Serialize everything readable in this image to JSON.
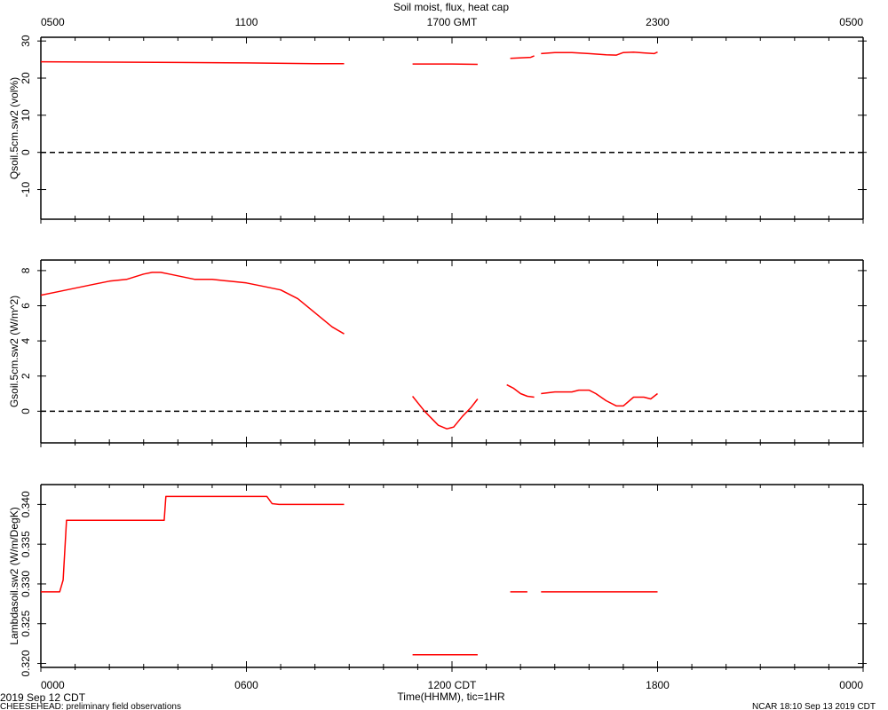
{
  "chart_data": {
    "type": "line",
    "title": "Soil moist, flux, heat cap",
    "line_color": "#ff0000",
    "top_axis_ticks": [
      "0500",
      "1100",
      "1700 GMT",
      "2300",
      "0500"
    ],
    "bottom_axis_ticks": [
      "0000",
      "0600",
      "1200 CDT",
      "1800",
      "0000"
    ],
    "xlabel": "Time(HHMM), tic=1HR",
    "x_range_hours": [
      0,
      24
    ],
    "start_label": "2019 Sep 12 CDT",
    "footer_left": "CHEESEHEAD: preliminary field observations",
    "footer_right": "NCAR 18:10 Sep 13 2019 CDT",
    "panels": [
      {
        "ylabel": "Qsoil.5cm.sw2 (vol%)",
        "ylim": [
          -18,
          31
        ],
        "yticks": [
          30,
          20,
          10,
          0,
          -10
        ],
        "ytick_labels": [
          "30",
          "20",
          "10",
          "0",
          "-10"
        ],
        "zero_line": true,
        "segments": [
          [
            [
              0,
              24.4
            ],
            [
              2,
              24.3
            ],
            [
              4,
              24.2
            ],
            [
              6,
              24.1
            ],
            [
              8,
              23.9
            ],
            [
              8.85,
              23.9
            ]
          ],
          [
            [
              10.85,
              23.8
            ],
            [
              12,
              23.8
            ],
            [
              12.75,
              23.7
            ]
          ],
          [
            [
              13.7,
              25.3
            ],
            [
              14.1,
              25.5
            ],
            [
              14.3,
              25.6
            ],
            [
              14.4,
              26.0
            ]
          ],
          [
            [
              14.6,
              26.6
            ],
            [
              15.0,
              26.9
            ],
            [
              15.5,
              26.9
            ],
            [
              16.0,
              26.6
            ],
            [
              16.5,
              26.3
            ],
            [
              16.8,
              26.2
            ],
            [
              17.0,
              26.9
            ],
            [
              17.3,
              27.0
            ],
            [
              17.6,
              26.8
            ],
            [
              17.9,
              26.6
            ],
            [
              18.0,
              27.0
            ]
          ]
        ]
      },
      {
        "ylabel": "Gsoil.5cm.sw2 (W/m^2)",
        "ylim": [
          -1.8,
          8.6
        ],
        "yticks": [
          8,
          6,
          4,
          2,
          0
        ],
        "ytick_labels": [
          "8",
          "6",
          "4",
          "2",
          "0"
        ],
        "zero_line": true,
        "segments": [
          [
            [
              0,
              6.6
            ],
            [
              0.5,
              6.8
            ],
            [
              1,
              7.0
            ],
            [
              1.5,
              7.2
            ],
            [
              2,
              7.4
            ],
            [
              2.5,
              7.5
            ],
            [
              3,
              7.8
            ],
            [
              3.25,
              7.9
            ],
            [
              3.5,
              7.9
            ],
            [
              3.75,
              7.8
            ],
            [
              4,
              7.7
            ],
            [
              4.5,
              7.5
            ],
            [
              5,
              7.5
            ],
            [
              5.5,
              7.4
            ],
            [
              6,
              7.3
            ],
            [
              6.5,
              7.1
            ],
            [
              7,
              6.9
            ],
            [
              7.5,
              6.4
            ],
            [
              8,
              5.6
            ],
            [
              8.5,
              4.8
            ],
            [
              8.85,
              4.4
            ]
          ],
          [
            [
              10.85,
              0.85
            ],
            [
              11.2,
              0.0
            ],
            [
              11.6,
              -0.8
            ],
            [
              11.85,
              -1.0
            ],
            [
              12.05,
              -0.9
            ],
            [
              12.3,
              -0.3
            ],
            [
              12.55,
              0.2
            ],
            [
              12.75,
              0.7
            ]
          ],
          [
            [
              13.6,
              1.5
            ],
            [
              13.8,
              1.3
            ],
            [
              14.0,
              1.0
            ],
            [
              14.2,
              0.85
            ],
            [
              14.4,
              0.8
            ]
          ],
          [
            [
              14.6,
              1.0
            ],
            [
              15.0,
              1.1
            ],
            [
              15.5,
              1.1
            ],
            [
              15.7,
              1.2
            ],
            [
              16.0,
              1.2
            ],
            [
              16.2,
              1.0
            ],
            [
              16.5,
              0.6
            ],
            [
              16.8,
              0.3
            ],
            [
              17.0,
              0.3
            ],
            [
              17.3,
              0.8
            ],
            [
              17.6,
              0.8
            ],
            [
              17.8,
              0.7
            ],
            [
              18.0,
              1.0
            ]
          ]
        ]
      },
      {
        "ylabel": "Lambdasoil.sw2 (W/m/DegK)",
        "ylim": [
          0.3195,
          0.3425
        ],
        "yticks": [
          0.34,
          0.335,
          0.33,
          0.325,
          0.32
        ],
        "ytick_labels": [
          "0.340",
          "0.335",
          "0.330",
          "0.325",
          "0.320"
        ],
        "zero_line": false,
        "segments": [
          [
            [
              0,
              0.329
            ],
            [
              0.55,
              0.329
            ],
            [
              0.65,
              0.3305
            ],
            [
              0.75,
              0.338
            ],
            [
              3.6,
              0.338
            ],
            [
              3.65,
              0.341
            ],
            [
              6.6,
              0.341
            ],
            [
              6.75,
              0.3401
            ],
            [
              6.95,
              0.34
            ],
            [
              8.85,
              0.34
            ]
          ],
          [
            [
              10.85,
              0.3211
            ],
            [
              12.75,
              0.3211
            ]
          ],
          [
            [
              13.7,
              0.329
            ],
            [
              14.2,
              0.329
            ]
          ],
          [
            [
              14.6,
              0.329
            ],
            [
              18.0,
              0.329
            ]
          ]
        ]
      }
    ]
  }
}
